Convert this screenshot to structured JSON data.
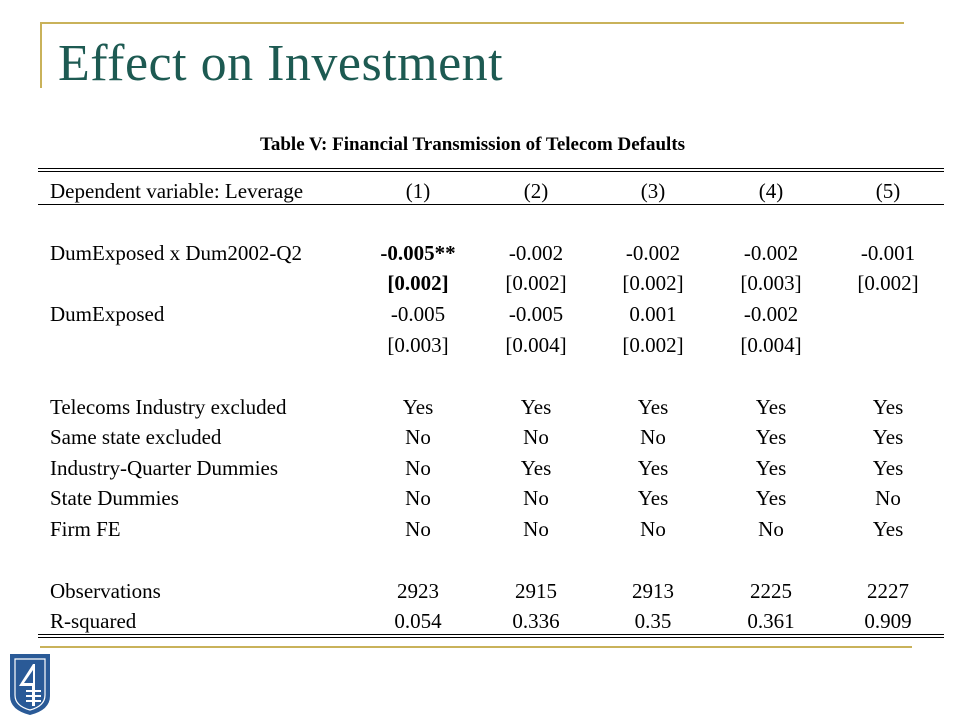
{
  "slide": {
    "title": "Effect on Investment"
  },
  "table": {
    "caption": "Table V: Financial Transmission of Telecom Defaults",
    "header": {
      "label": "Dependent variable: Leverage",
      "cols": [
        "(1)",
        "(2)",
        "(3)",
        "(4)",
        "(5)"
      ]
    },
    "coef_rows": [
      {
        "label": "DumExposed x Dum2002-Q2",
        "values": [
          "-0.005**",
          "-0.002",
          "-0.002",
          "-0.002",
          "-0.001"
        ]
      },
      {
        "label": "",
        "values": [
          "[0.002]",
          "[0.002]",
          "[0.002]",
          "[0.003]",
          "[0.002]"
        ]
      },
      {
        "label": "DumExposed",
        "values": [
          "-0.005",
          "-0.005",
          "0.001",
          "-0.002",
          ""
        ]
      },
      {
        "label": "",
        "values": [
          "[0.003]",
          "[0.004]",
          "[0.002]",
          "[0.004]",
          ""
        ]
      }
    ],
    "control_rows": [
      {
        "label": "Telecoms Industry excluded",
        "values": [
          "Yes",
          "Yes",
          "Yes",
          "Yes",
          "Yes"
        ]
      },
      {
        "label": "Same state excluded",
        "values": [
          "No",
          "No",
          "No",
          "Yes",
          "Yes"
        ]
      },
      {
        "label": "Industry-Quarter Dummies",
        "values": [
          "No",
          "Yes",
          "Yes",
          "Yes",
          "Yes"
        ]
      },
      {
        "label": "State Dummies",
        "values": [
          "No",
          "No",
          "Yes",
          "Yes",
          "No"
        ]
      },
      {
        "label": "Firm FE",
        "values": [
          "No",
          "No",
          "No",
          "No",
          "Yes"
        ]
      }
    ],
    "stat_rows": [
      {
        "label": "Observations",
        "values": [
          "2923",
          "2915",
          "2913",
          "2225",
          "2227"
        ]
      },
      {
        "label": "R-squared",
        "values": [
          "0.054",
          "0.336",
          "0.35",
          "0.361",
          "0.909"
        ]
      }
    ]
  },
  "logo": {
    "icon": "institution-logo-icon"
  },
  "colors": {
    "title": "#1d5a52",
    "rule": "#c9b25a",
    "logo": "#2a5a97"
  }
}
